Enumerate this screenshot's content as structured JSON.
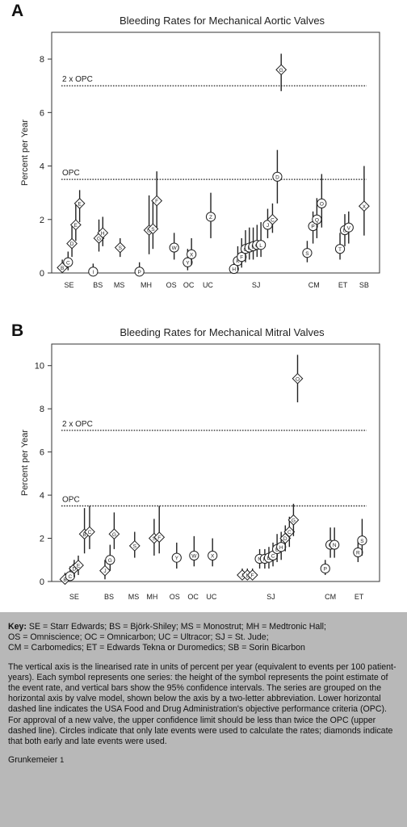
{
  "chart_data": [
    {
      "type": "scatter",
      "panel": "A",
      "title": "Bleeding Rates for Mechanical Aortic Valves",
      "xlabel": "",
      "ylabel": "Percent per Year",
      "ylim": [
        0,
        9
      ],
      "yticks": [
        "0",
        "2",
        "4",
        "6",
        "8"
      ],
      "grid": false,
      "reference_lines": [
        {
          "label": "2 x OPC",
          "value": 7.0
        },
        {
          "label": "OPC",
          "value": 3.5
        }
      ],
      "groups": [
        "SE",
        "BS",
        "MS",
        "MH",
        "OS",
        "OC",
        "UC",
        "SJ",
        "CM",
        "ET",
        "SB"
      ],
      "points": [
        {
          "x": 0.55,
          "label": "B",
          "y": 0.2,
          "lo": 0.05,
          "hi": 0.5,
          "shape": "diamond"
        },
        {
          "x": 0.85,
          "label": "C",
          "y": 0.4,
          "lo": 0.1,
          "hi": 0.8,
          "shape": "circle"
        },
        {
          "x": 1.05,
          "label": "D",
          "y": 1.1,
          "lo": 0.6,
          "hi": 1.8,
          "shape": "diamond"
        },
        {
          "x": 1.25,
          "label": "E",
          "y": 1.8,
          "lo": 1.2,
          "hi": 2.6,
          "shape": "diamond"
        },
        {
          "x": 1.45,
          "label": "E",
          "y": 2.6,
          "lo": 1.9,
          "hi": 3.1,
          "shape": "diamond"
        },
        {
          "x": 2.15,
          "label": "I",
          "y": 0.05,
          "lo": 0.0,
          "hi": 0.35,
          "shape": "circle"
        },
        {
          "x": 2.45,
          "label": "G",
          "y": 1.3,
          "lo": 0.8,
          "hi": 2.0,
          "shape": "diamond"
        },
        {
          "x": 2.65,
          "label": "H",
          "y": 1.5,
          "lo": 1.0,
          "hi": 2.1,
          "shape": "diamond"
        },
        {
          "x": 3.55,
          "label": "S",
          "y": 0.95,
          "lo": 0.6,
          "hi": 1.3,
          "shape": "diamond"
        },
        {
          "x": 4.55,
          "label": "P",
          "y": 0.05,
          "lo": 0.0,
          "hi": 0.4,
          "shape": "circle"
        },
        {
          "x": 5.05,
          "label": "O",
          "y": 1.6,
          "lo": 0.7,
          "hi": 2.9,
          "shape": "diamond"
        },
        {
          "x": 5.25,
          "label": "S",
          "y": 1.65,
          "lo": 0.9,
          "hi": 2.7,
          "shape": "diamond"
        },
        {
          "x": 5.45,
          "label": "F",
          "y": 2.7,
          "lo": 1.7,
          "hi": 3.8,
          "shape": "diamond"
        },
        {
          "x": 6.35,
          "label": "W",
          "y": 0.95,
          "lo": 0.5,
          "hi": 1.5,
          "shape": "circle"
        },
        {
          "x": 7.05,
          "label": "Y",
          "y": 0.4,
          "lo": 0.1,
          "hi": 0.9,
          "shape": "circle"
        },
        {
          "x": 7.25,
          "label": "X",
          "y": 0.7,
          "lo": 0.3,
          "hi": 1.3,
          "shape": "circle"
        },
        {
          "x": 8.25,
          "label": "Z",
          "y": 2.1,
          "lo": 1.3,
          "hi": 3.0,
          "shape": "circle"
        },
        {
          "x": 9.45,
          "label": "H",
          "y": 0.15,
          "lo": 0.05,
          "hi": 0.5,
          "shape": "circle"
        },
        {
          "x": 9.65,
          "label": "K",
          "y": 0.45,
          "lo": 0.1,
          "hi": 1.0,
          "shape": "circle"
        },
        {
          "x": 9.85,
          "label": "F",
          "y": 0.6,
          "lo": 0.2,
          "hi": 1.3,
          "shape": "circle"
        },
        {
          "x": 10.05,
          "label": "G",
          "y": 0.9,
          "lo": 0.4,
          "hi": 1.6,
          "shape": "circle"
        },
        {
          "x": 10.25,
          "label": "E",
          "y": 0.95,
          "lo": 0.5,
          "hi": 1.7,
          "shape": "circle"
        },
        {
          "x": 10.45,
          "label": "B",
          "y": 1.0,
          "lo": 0.5,
          "hi": 1.7,
          "shape": "circle"
        },
        {
          "x": 10.65,
          "label": "C",
          "y": 1.05,
          "lo": 0.6,
          "hi": 1.8,
          "shape": "circle"
        },
        {
          "x": 10.85,
          "label": "L",
          "y": 1.05,
          "lo": 0.6,
          "hi": 1.9,
          "shape": "circle"
        },
        {
          "x": 11.2,
          "label": "J",
          "y": 1.8,
          "lo": 1.3,
          "hi": 2.4,
          "shape": "circle"
        },
        {
          "x": 11.45,
          "label": "C",
          "y": 2.0,
          "lo": 1.5,
          "hi": 2.6,
          "shape": "diamond"
        },
        {
          "x": 11.7,
          "label": "D",
          "y": 3.6,
          "lo": 2.6,
          "hi": 4.6,
          "shape": "circle"
        },
        {
          "x": 11.9,
          "label": "G",
          "y": 7.6,
          "lo": 6.8,
          "hi": 8.2,
          "shape": "diamond"
        },
        {
          "x": 13.25,
          "label": "S",
          "y": 0.75,
          "lo": 0.4,
          "hi": 1.2,
          "shape": "circle"
        },
        {
          "x": 13.55,
          "label": "P",
          "y": 1.75,
          "lo": 1.1,
          "hi": 2.3,
          "shape": "circle"
        },
        {
          "x": 13.75,
          "label": "Q",
          "y": 2.0,
          "lo": 1.3,
          "hi": 2.8,
          "shape": "circle"
        },
        {
          "x": 14.0,
          "label": "O",
          "y": 2.6,
          "lo": 1.7,
          "hi": 3.7,
          "shape": "circle"
        },
        {
          "x": 14.95,
          "label": "T",
          "y": 0.9,
          "lo": 0.5,
          "hi": 1.5,
          "shape": "circle"
        },
        {
          "x": 15.2,
          "label": "U",
          "y": 1.6,
          "lo": 1.0,
          "hi": 2.2,
          "shape": "circle"
        },
        {
          "x": 15.4,
          "label": "V",
          "y": 1.7,
          "lo": 1.1,
          "hi": 2.3,
          "shape": "circle"
        },
        {
          "x": 16.2,
          "label": "X",
          "y": 2.5,
          "lo": 1.4,
          "hi": 4.0,
          "shape": "diamond"
        }
      ]
    },
    {
      "type": "scatter",
      "panel": "B",
      "title": "Bleeding Rates for Mechanical Mitral Valves",
      "xlabel": "",
      "ylabel": "Percent per Year",
      "ylim": [
        0,
        11
      ],
      "yticks": [
        "0",
        "2",
        "4",
        "6",
        "8",
        "10"
      ],
      "grid": false,
      "reference_lines": [
        {
          "label": "2 x OPC",
          "value": 7.0
        },
        {
          "label": "OPC",
          "value": 3.5
        }
      ],
      "groups": [
        "SE",
        "BS",
        "MS",
        "MH",
        "OS",
        "OC",
        "UC",
        "SJ",
        "CM",
        "ET"
      ],
      "points": [
        {
          "x": 0.65,
          "label": "B",
          "y": 0.1,
          "lo": 0.0,
          "hi": 0.4,
          "shape": "diamond"
        },
        {
          "x": 0.9,
          "label": "C",
          "y": 0.25,
          "lo": 0.05,
          "hi": 0.7,
          "shape": "circle"
        },
        {
          "x": 1.1,
          "label": "D",
          "y": 0.6,
          "lo": 0.2,
          "hi": 1.0,
          "shape": "diamond"
        },
        {
          "x": 1.3,
          "label": "E",
          "y": 0.75,
          "lo": 0.3,
          "hi": 1.2,
          "shape": "diamond"
        },
        {
          "x": 1.6,
          "label": "B",
          "y": 2.2,
          "lo": 1.3,
          "hi": 3.4,
          "shape": "diamond"
        },
        {
          "x": 1.85,
          "label": "C",
          "y": 2.3,
          "lo": 1.5,
          "hi": 3.5,
          "shape": "diamond"
        },
        {
          "x": 2.6,
          "label": "J",
          "y": 0.5,
          "lo": 0.1,
          "hi": 1.0,
          "shape": "diamond"
        },
        {
          "x": 2.85,
          "label": "G",
          "y": 1.0,
          "lo": 0.5,
          "hi": 1.7,
          "shape": "circle"
        },
        {
          "x": 3.05,
          "label": "G",
          "y": 2.2,
          "lo": 1.5,
          "hi": 3.2,
          "shape": "diamond"
        },
        {
          "x": 4.05,
          "label": "S",
          "y": 1.65,
          "lo": 1.1,
          "hi": 2.3,
          "shape": "diamond"
        },
        {
          "x": 5.0,
          "label": "S",
          "y": 2.0,
          "lo": 1.2,
          "hi": 2.9,
          "shape": "diamond"
        },
        {
          "x": 5.25,
          "label": "F",
          "y": 2.05,
          "lo": 1.3,
          "hi": 3.5,
          "shape": "diamond"
        },
        {
          "x": 6.1,
          "label": "Y",
          "y": 1.1,
          "lo": 0.6,
          "hi": 1.8,
          "shape": "circle"
        },
        {
          "x": 6.95,
          "label": "W",
          "y": 1.2,
          "lo": 0.7,
          "hi": 2.1,
          "shape": "circle"
        },
        {
          "x": 7.85,
          "label": "X",
          "y": 1.2,
          "lo": 0.7,
          "hi": 2.0,
          "shape": "circle"
        },
        {
          "x": 9.3,
          "label": "J",
          "y": 0.3,
          "lo": 0.1,
          "hi": 0.6,
          "shape": "diamond"
        },
        {
          "x": 9.55,
          "label": "L",
          "y": 0.3,
          "lo": 0.1,
          "hi": 0.6,
          "shape": "diamond"
        },
        {
          "x": 9.8,
          "label": "F",
          "y": 0.3,
          "lo": 0.1,
          "hi": 0.6,
          "shape": "diamond"
        },
        {
          "x": 10.15,
          "label": "N",
          "y": 1.05,
          "lo": 0.6,
          "hi": 1.5,
          "shape": "circle"
        },
        {
          "x": 10.4,
          "label": "K",
          "y": 1.05,
          "lo": 0.6,
          "hi": 1.5,
          "shape": "circle"
        },
        {
          "x": 10.6,
          "label": "E",
          "y": 1.1,
          "lo": 0.6,
          "hi": 1.6,
          "shape": "circle"
        },
        {
          "x": 10.8,
          "label": "C",
          "y": 1.2,
          "lo": 0.7,
          "hi": 1.8,
          "shape": "circle"
        },
        {
          "x": 11.0,
          "label": "B",
          "y": 1.5,
          "lo": 0.9,
          "hi": 2.2,
          "shape": "circle"
        },
        {
          "x": 11.2,
          "label": "H",
          "y": 1.6,
          "lo": 1.0,
          "hi": 2.3,
          "shape": "circle"
        },
        {
          "x": 11.4,
          "label": "D",
          "y": 2.0,
          "lo": 1.4,
          "hi": 2.6,
          "shape": "diamond"
        },
        {
          "x": 11.6,
          "label": "C",
          "y": 2.3,
          "lo": 1.6,
          "hi": 3.0,
          "shape": "diamond"
        },
        {
          "x": 11.8,
          "label": "G",
          "y": 2.85,
          "lo": 2.1,
          "hi": 3.6,
          "shape": "diamond"
        },
        {
          "x": 12.0,
          "label": "O",
          "y": 9.4,
          "lo": 8.3,
          "hi": 10.5,
          "shape": "diamond"
        },
        {
          "x": 13.35,
          "label": "P",
          "y": 0.6,
          "lo": 0.3,
          "hi": 1.0,
          "shape": "circle"
        },
        {
          "x": 13.6,
          "label": "Q",
          "y": 1.7,
          "lo": 1.1,
          "hi": 2.5,
          "shape": "circle"
        },
        {
          "x": 13.8,
          "label": "N",
          "y": 1.7,
          "lo": 1.1,
          "hi": 2.5,
          "shape": "circle"
        },
        {
          "x": 14.95,
          "label": "R",
          "y": 1.35,
          "lo": 0.9,
          "hi": 1.9,
          "shape": "circle"
        },
        {
          "x": 15.15,
          "label": "S",
          "y": 1.9,
          "lo": 1.2,
          "hi": 2.9,
          "shape": "circle"
        }
      ]
    }
  ],
  "caption": {
    "key_heading": "Key:",
    "key_lines": [
      "SE = Starr Edwards; BS = Björk-Shiley; MS = Monostrut; MH = Medtronic Hall;",
      "OS = Omniscience; OC = Omnicarbon; UC = Ultracor; SJ = St. Jude;",
      "CM = Carbomedics; ET = Edwards Tekna or Duromedics; SB = Sorin Bicarbon"
    ],
    "description": "The vertical axis is the linearised rate in units of percent per year (equivalent to events per 100 patient-years). Each symbol represents one series: the height of the symbol represents the point estimate of the event rate, and vertical bars show the 95% confidence intervals. The series are grouped on the horizontal axis by valve model, shown below the axis by a two-letter abbreviation. Lower horizontal dashed line indicates the USA Food and Drug Administration's objective performance criteria (OPC). For approval of a new valve, the upper confidence limit should be less than twice the OPC (upper dashed line). Circles indicate that only late events were used to calculate the rates; diamonds indicate that both early and late events were used.",
    "credit": "Grunkemeier",
    "credit_ref": "1"
  }
}
